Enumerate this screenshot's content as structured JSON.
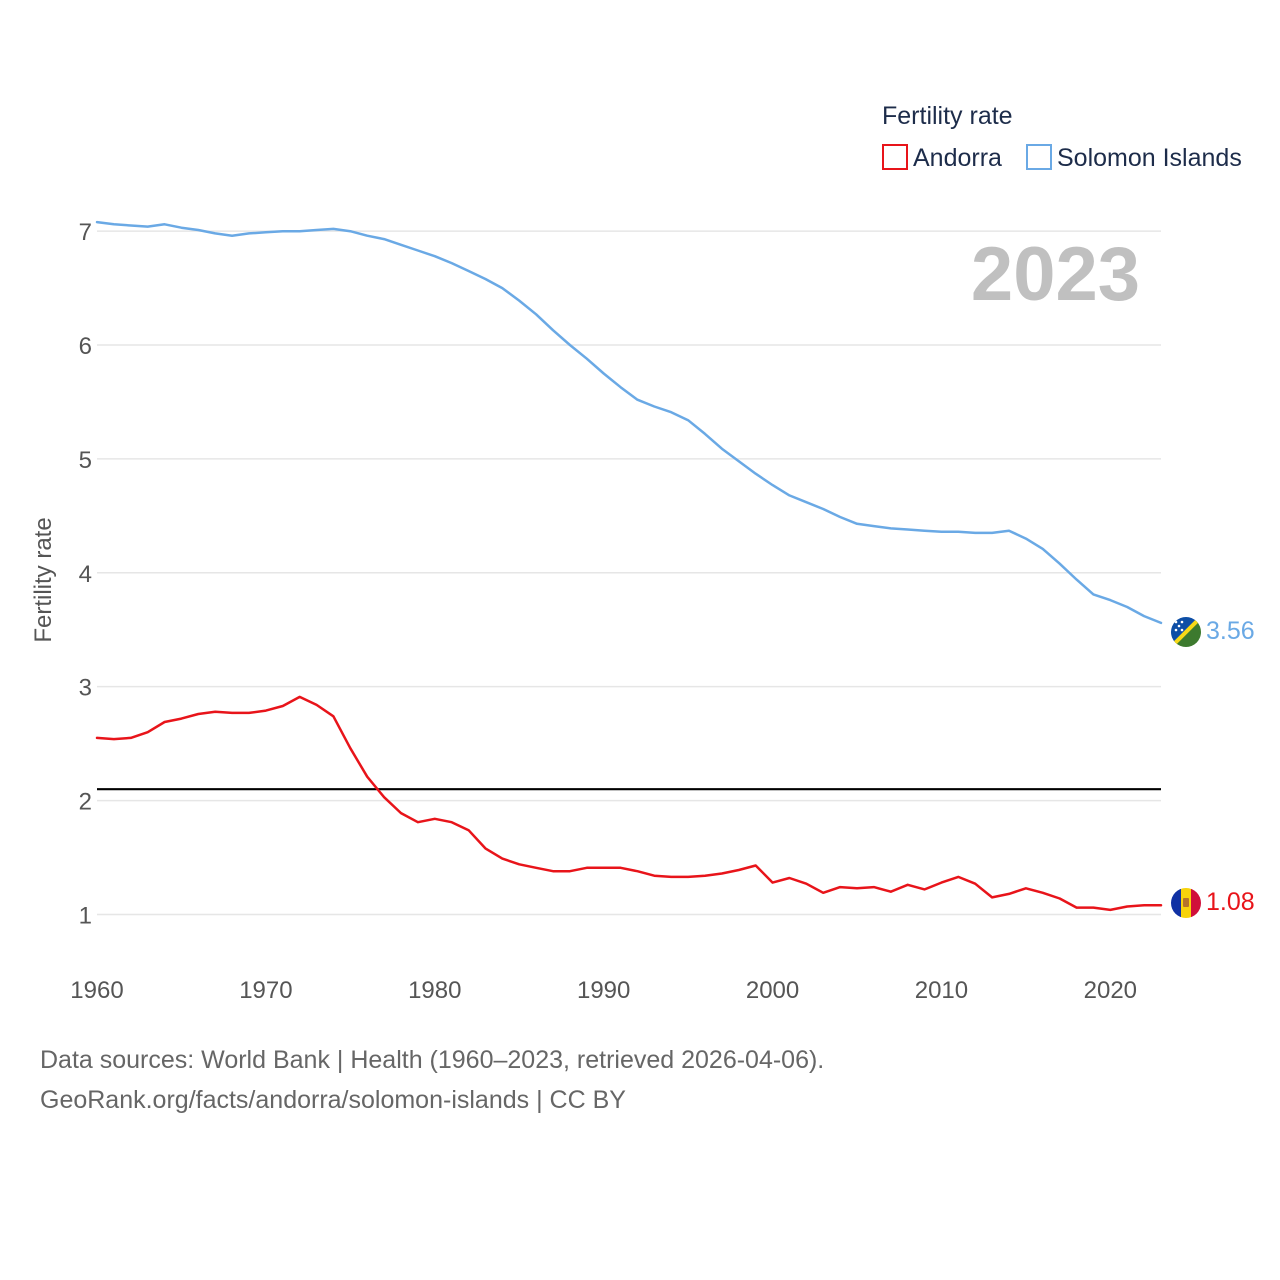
{
  "chart_data": {
    "type": "line",
    "title": "Fertility rate",
    "year_label": "2023",
    "xlabel": "",
    "ylabel": "Fertility rate",
    "xlim": [
      1960,
      2023
    ],
    "ylim": [
      0.6,
      7.3
    ],
    "x_ticks": [
      1960,
      1970,
      1980,
      1990,
      2000,
      2010,
      2020
    ],
    "y_ticks": [
      1,
      2,
      3,
      4,
      5,
      6,
      7
    ],
    "reference_line": 2.1,
    "reference_color": "#000000",
    "legend": {
      "title": "Fertility rate",
      "placement": "top-right"
    },
    "x": [
      1960,
      1961,
      1962,
      1963,
      1964,
      1965,
      1966,
      1967,
      1968,
      1969,
      1970,
      1971,
      1972,
      1973,
      1974,
      1975,
      1976,
      1977,
      1978,
      1979,
      1980,
      1981,
      1982,
      1983,
      1984,
      1985,
      1986,
      1987,
      1988,
      1989,
      1990,
      1991,
      1992,
      1993,
      1994,
      1995,
      1996,
      1997,
      1998,
      1999,
      2000,
      2001,
      2002,
      2003,
      2004,
      2005,
      2006,
      2007,
      2008,
      2009,
      2010,
      2011,
      2012,
      2013,
      2014,
      2015,
      2016,
      2017,
      2018,
      2019,
      2020,
      2021,
      2022,
      2023
    ],
    "series": [
      {
        "name": "Andorra",
        "color": "#e8141a",
        "end_label": "1.08",
        "flag": "andorra-flag-icon",
        "values": [
          2.55,
          2.54,
          2.55,
          2.6,
          2.69,
          2.72,
          2.76,
          2.78,
          2.77,
          2.77,
          2.79,
          2.83,
          2.91,
          2.84,
          2.74,
          2.46,
          2.21,
          2.03,
          1.89,
          1.81,
          1.84,
          1.81,
          1.74,
          1.58,
          1.49,
          1.44,
          1.41,
          1.38,
          1.38,
          1.41,
          1.41,
          1.41,
          1.38,
          1.34,
          1.33,
          1.33,
          1.34,
          1.36,
          1.39,
          1.43,
          1.28,
          1.32,
          1.27,
          1.19,
          1.24,
          1.23,
          1.24,
          1.2,
          1.26,
          1.22,
          1.28,
          1.33,
          1.27,
          1.15,
          1.18,
          1.23,
          1.19,
          1.14,
          1.06,
          1.06,
          1.04,
          1.07,
          1.08,
          1.08
        ]
      },
      {
        "name": "Solomon Islands",
        "color": "#6aa9e5",
        "end_label": "3.56",
        "flag": "solomon-islands-flag-icon",
        "values": [
          7.08,
          7.06,
          7.05,
          7.04,
          7.06,
          7.03,
          7.01,
          6.98,
          6.96,
          6.98,
          6.99,
          7.0,
          7.0,
          7.01,
          7.02,
          7.0,
          6.96,
          6.93,
          6.88,
          6.83,
          6.78,
          6.72,
          6.65,
          6.58,
          6.5,
          6.39,
          6.27,
          6.13,
          6.0,
          5.88,
          5.75,
          5.63,
          5.52,
          5.46,
          5.41,
          5.34,
          5.22,
          5.09,
          4.98,
          4.87,
          4.77,
          4.68,
          4.62,
          4.56,
          4.49,
          4.43,
          4.41,
          4.39,
          4.38,
          4.37,
          4.36,
          4.36,
          4.35,
          4.35,
          4.37,
          4.3,
          4.21,
          4.08,
          3.94,
          3.81,
          3.76,
          3.7,
          3.62,
          3.56
        ]
      }
    ]
  },
  "footer": {
    "source_line": "Data sources: World Bank | Health (1960–2023, retrieved 2026-04-06).",
    "credit_line": "GeoRank.org/facts/andorra/solomon-islands | CC BY"
  }
}
